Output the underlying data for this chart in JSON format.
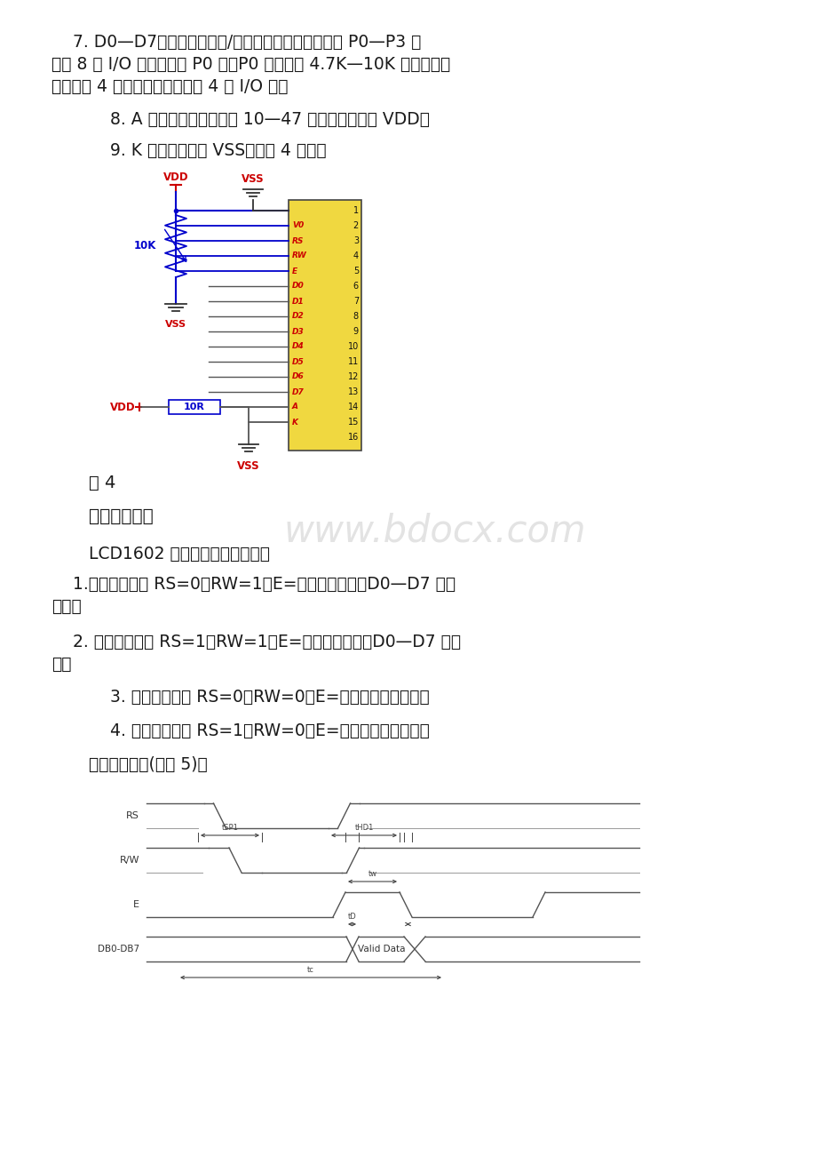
{
  "bg_color": "#ffffff",
  "text_color": "#1a1a1a",
  "red_color": "#cc0000",
  "blue_color": "#0000cc",
  "gray_line": "#555555",
  "para1_line1": "    7. D0—D7，并行数据输入/输出引脚，可接单片机的 P0—P3 任",
  "para1_line2": "意的 8 个 I/O 口。如果接 P0 口，P0 口应该接 4.7K—10K 的上拉电阻",
  "para1_line3": "。如果是 4 线并行驱动，只须接 4 个 I/O 口。",
  "para2": "    8. A 背光正极，可接一个 10—47 欧的限流电阻到 VDD。",
  "para3": "    9. K 背光负极，接 VSS。见图 4 所示。",
  "fig4_label": "图 4",
  "section2_title": "二．基本操作",
  "watermark": "www.bdocx.com",
  "intro_text": "LCD1602 的基本操作分为四种：",
  "op1_line1": "    1.读状态：输入 RS=0，RW=1，E=高脉冲。输出：D0—D7 为状",
  "op1_line2": "态字。",
  "op2_line1": "    2. 读数据：输入 RS=1，RW=1，E=高脉冲。输出：D0—D7 为数",
  "op2_line2": "据。",
  "op3": "    3. 写命令：输入 RS=0，RW=0，E=高脉冲。输出：无。",
  "op4": "    4. 写数据：输入 RS=1，RW=0，E=高脉冲。输出：无。",
  "timing_label": "读操作时序图(如图 5)：",
  "pin_signals": [
    "",
    "V0",
    "RS",
    "RW",
    "E",
    "D0",
    "D1",
    "D2",
    "D3",
    "D4",
    "D5",
    "D6",
    "D7",
    "A",
    "K",
    ""
  ],
  "pin_numbers": [
    "1",
    "2",
    "3",
    "4",
    "5",
    "6",
    "7",
    "8",
    "9",
    "10",
    "11",
    "12",
    "13",
    "14",
    "15",
    "16"
  ]
}
